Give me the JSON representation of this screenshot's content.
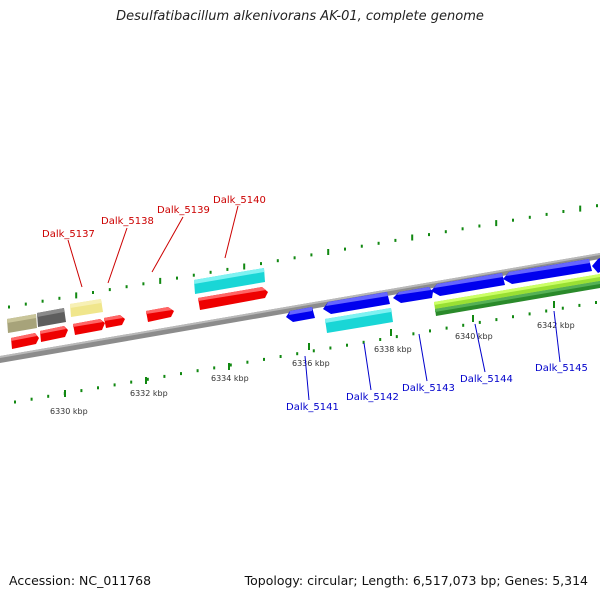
{
  "title": "Desulfatibacillum alkenivorans AK-01, complete genome",
  "footer": {
    "accession": "Accession: NC_011768",
    "summary": "Topology: circular; Length: 6,517,073 bp; Genes: 5,314"
  },
  "colors": {
    "reverse_label": "#cc0000",
    "forward_label": "#0000cc",
    "backbone": "#8c8c8c",
    "tick": "#118811",
    "dot": "#118811"
  },
  "ticks": [
    {
      "label": "6330 kbp"
    },
    {
      "label": "6332 kbp"
    },
    {
      "label": "6334 kbp"
    },
    {
      "label": "6336 kbp"
    },
    {
      "label": "6338 kbp"
    },
    {
      "label": "6340 kbp"
    },
    {
      "label": "6342 kbp"
    }
  ],
  "gene_labels": [
    {
      "text": "Dalk_5137",
      "strand": "reverse"
    },
    {
      "text": "Dalk_5138",
      "strand": "reverse"
    },
    {
      "text": "Dalk_5139",
      "strand": "reverse"
    },
    {
      "text": "Dalk_5140",
      "strand": "reverse"
    },
    {
      "text": "Dalk_5141",
      "strand": "forward"
    },
    {
      "text": "Dalk_5142",
      "strand": "forward"
    },
    {
      "text": "Dalk_5143",
      "strand": "forward"
    },
    {
      "text": "Dalk_5144",
      "strand": "forward"
    },
    {
      "text": "Dalk_5145",
      "strand": "forward"
    }
  ]
}
